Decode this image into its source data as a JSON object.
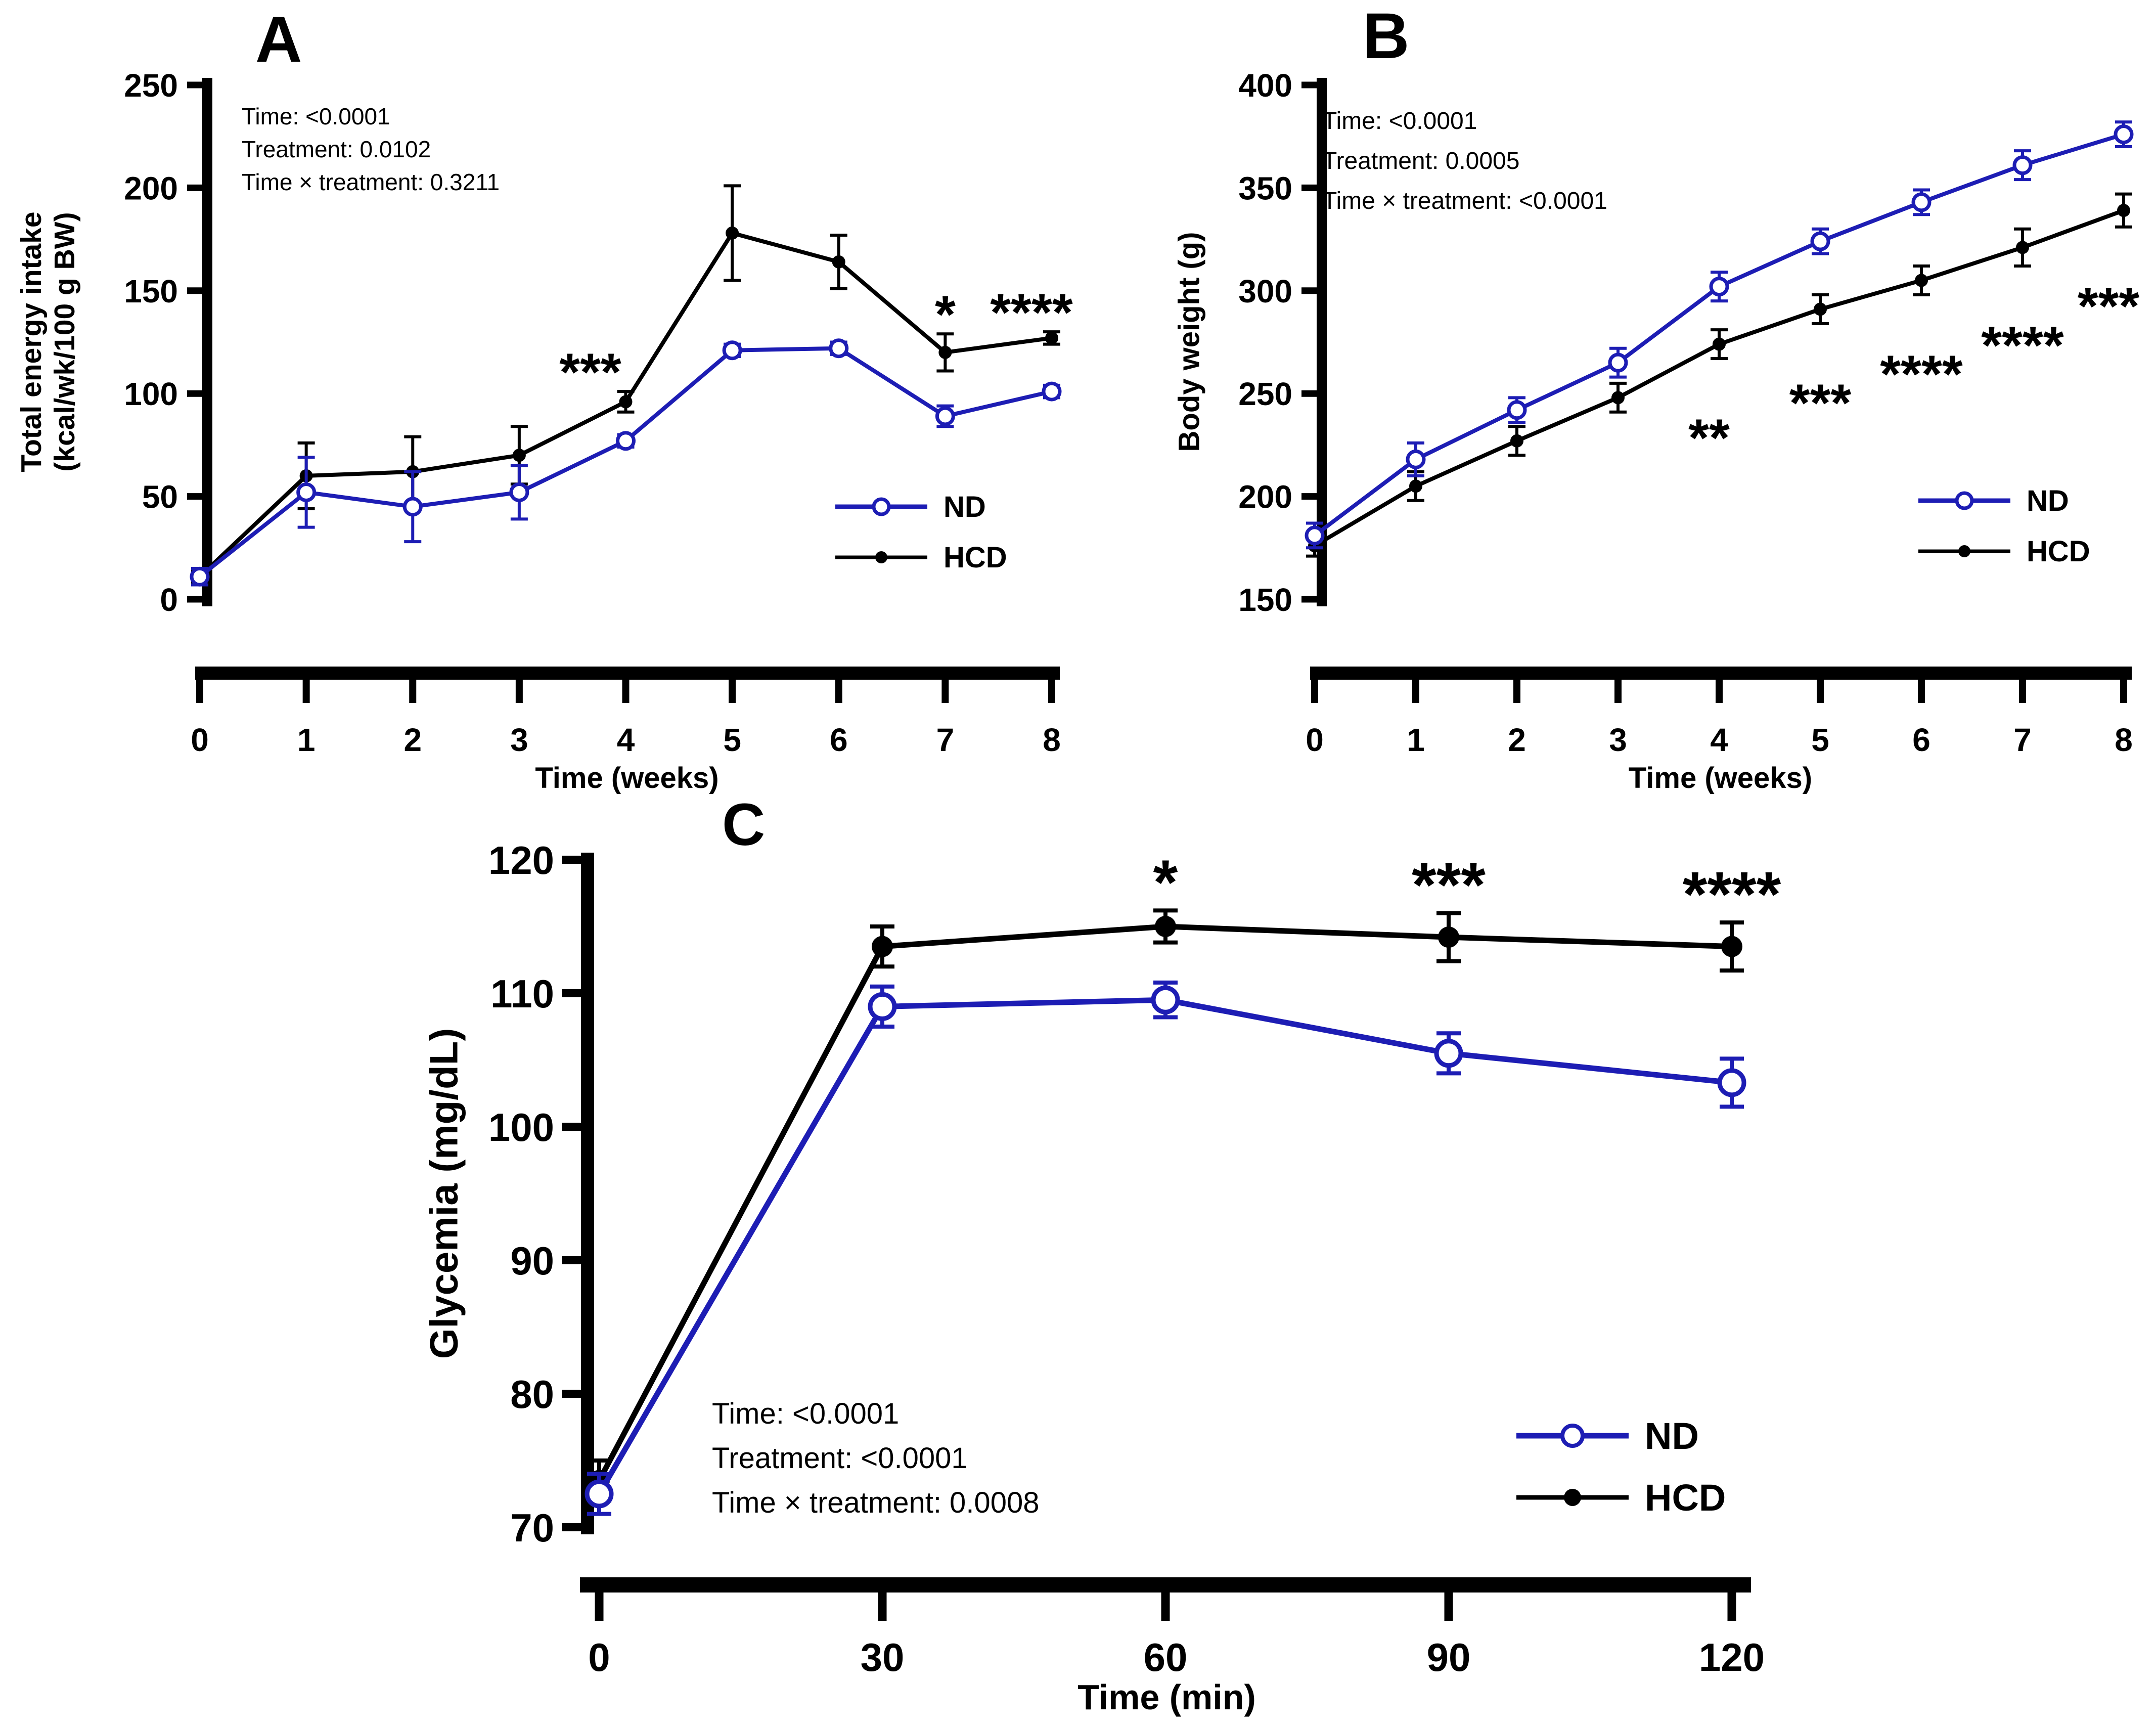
{
  "figure_type": "three-panel line figure (GraphPad style)",
  "colors": {
    "nd_blue": "#1d1db4",
    "hcd_black": "#000000",
    "background": "#ffffff"
  },
  "chart_data": [
    {
      "panel": "A",
      "letter": "A",
      "type": "line",
      "xlabel": "Time (weeks)",
      "ylabel_lines": [
        "Total energy intake",
        "(kcal/wk/100 g BW)"
      ],
      "x": [
        0,
        1,
        2,
        3,
        4,
        5,
        6,
        7,
        8
      ],
      "xlim": [
        0,
        8
      ],
      "ylim": [
        0,
        250
      ],
      "yticks": [
        0,
        50,
        100,
        150,
        200,
        250
      ],
      "stats": [
        "Time: <0.0001",
        "Treatment: 0.0102",
        "Time × treatment: 0.3211"
      ],
      "legend_position": "inside-right",
      "series": [
        {
          "name": "ND",
          "color": "#1d1db4",
          "marker": "open-circle",
          "values": [
            11,
            52,
            45,
            52,
            77,
            121,
            122,
            89,
            101
          ],
          "errors": [
            4,
            17,
            17,
            13,
            3,
            3,
            3,
            5,
            3
          ]
        },
        {
          "name": "HCD",
          "color": "#000000",
          "marker": "filled-circle",
          "values": [
            11,
            60,
            62,
            70,
            96,
            178,
            164,
            120,
            127
          ],
          "errors": [
            3,
            16,
            17,
            14,
            5,
            23,
            13,
            9,
            3
          ]
        }
      ],
      "significance": [
        {
          "x": 4,
          "text": "***",
          "placement": "above",
          "dx": -70
        },
        {
          "x": 7,
          "text": "*",
          "placement": "above",
          "dx": 0
        },
        {
          "x": 8,
          "text": "****",
          "placement": "above",
          "dx": -40
        }
      ]
    },
    {
      "panel": "B",
      "letter": "B",
      "type": "line",
      "xlabel": "Time (weeks)",
      "ylabel_lines": [
        "Body weight (g)"
      ],
      "x": [
        0,
        1,
        2,
        3,
        4,
        5,
        6,
        7,
        8
      ],
      "xlim": [
        0,
        8
      ],
      "ylim": [
        150,
        400
      ],
      "yticks": [
        150,
        200,
        250,
        300,
        350,
        400
      ],
      "stats": [
        "Time: <0.0001",
        "Treatment: 0.0005",
        "Time × treatment: <0.0001"
      ],
      "legend_position": "inside-right",
      "series": [
        {
          "name": "ND",
          "color": "#1d1db4",
          "marker": "open-circle",
          "values": [
            181,
            218,
            242,
            265,
            302,
            324,
            343,
            361,
            376
          ],
          "errors": [
            6,
            8,
            6,
            7,
            7,
            6,
            6,
            7,
            6
          ]
        },
        {
          "name": "HCD",
          "color": "#000000",
          "marker": "filled-circle",
          "values": [
            176,
            205,
            227,
            248,
            274,
            291,
            305,
            321,
            339
          ],
          "errors": [
            5,
            7,
            7,
            7,
            7,
            7,
            7,
            9,
            8
          ]
        }
      ],
      "significance": [
        {
          "x": 4,
          "text": "**",
          "placement": "below",
          "dx": -20
        },
        {
          "x": 5,
          "text": "***",
          "placement": "below",
          "dx": 0
        },
        {
          "x": 6,
          "text": "****",
          "placement": "below",
          "dx": 0
        },
        {
          "x": 7,
          "text": "****",
          "placement": "below",
          "dx": 0
        },
        {
          "x": 8,
          "text": "***",
          "placement": "below",
          "dx": -30
        }
      ]
    },
    {
      "panel": "C",
      "letter": "C",
      "type": "line",
      "xlabel": "Time (min)",
      "ylabel_lines": [
        "Glycemia (mg/dL)"
      ],
      "x": [
        0,
        30,
        60,
        90,
        120
      ],
      "xlim": [
        0,
        120
      ],
      "ylim": [
        70,
        120
      ],
      "yticks": [
        70,
        80,
        90,
        100,
        110,
        120
      ],
      "stats": [
        "Time: <0.0001",
        "Treatment: <0.0001",
        "Time × treatment: 0.0008"
      ],
      "legend_position": "inside-right",
      "series": [
        {
          "name": "ND",
          "color": "#1d1db4",
          "marker": "open-circle",
          "values": [
            72.5,
            109,
            109.5,
            105.5,
            103.3
          ],
          "errors": [
            1.5,
            1.5,
            1.3,
            1.5,
            1.8
          ]
        },
        {
          "name": "HCD",
          "color": "#000000",
          "marker": "filled-circle",
          "values": [
            73.5,
            113.5,
            115,
            114.2,
            113.5
          ],
          "errors": [
            1.5,
            1.5,
            1.2,
            1.8,
            1.8
          ]
        }
      ],
      "significance": [
        {
          "x": 60,
          "text": "*",
          "placement": "above",
          "dx": 0
        },
        {
          "x": 90,
          "text": "***",
          "placement": "above",
          "dx": 0
        },
        {
          "x": 120,
          "text": "****",
          "placement": "above",
          "dx": 0
        }
      ]
    }
  ]
}
